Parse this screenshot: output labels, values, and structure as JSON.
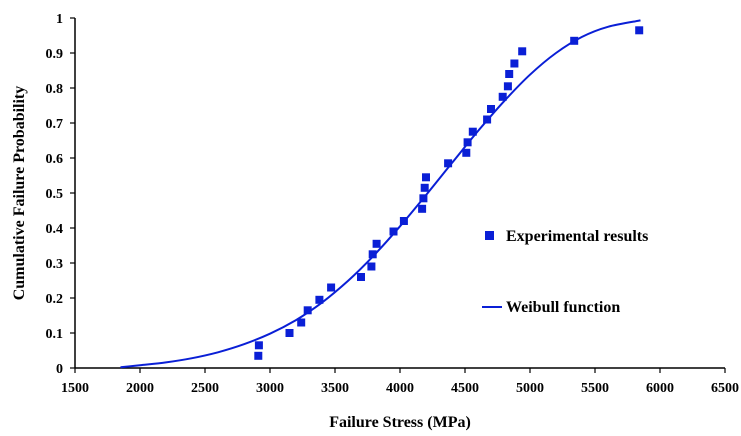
{
  "chart_data": {
    "type": "scatter",
    "title": "",
    "xlabel": "Failure Stress (MPa)",
    "ylabel": "Cumulative Failure Probability",
    "xlim": [
      1500,
      6500
    ],
    "ylim": [
      0,
      1
    ],
    "xticks": [
      "1500",
      "2000",
      "2500",
      "3000",
      "3500",
      "4000",
      "4500",
      "5000",
      "5500",
      "6000",
      "6500"
    ],
    "yticks": [
      "0",
      "0.1",
      "0.2",
      "0.3",
      "0.4",
      "0.5",
      "0.6",
      "0.7",
      "0.8",
      "0.9",
      "1"
    ],
    "grid": false,
    "legend": "right",
    "colors": {
      "series": "#0a1fd6"
    },
    "series": [
      {
        "name": "Experimental results",
        "kind": "points",
        "marker": "square",
        "x": [
          2910,
          2915,
          3150,
          3240,
          3290,
          3380,
          3470,
          3700,
          3780,
          3790,
          3820,
          3950,
          4030,
          4170,
          4180,
          4190,
          4200,
          4370,
          4510,
          4520,
          4560,
          4670,
          4700,
          4790,
          4830,
          4840,
          4880,
          4940,
          5340,
          5840
        ],
        "y": [
          0.035,
          0.065,
          0.1,
          0.13,
          0.165,
          0.195,
          0.23,
          0.26,
          0.29,
          0.325,
          0.355,
          0.39,
          0.42,
          0.455,
          0.485,
          0.515,
          0.545,
          0.585,
          0.615,
          0.645,
          0.675,
          0.71,
          0.74,
          0.775,
          0.805,
          0.84,
          0.87,
          0.905,
          0.935,
          0.965
        ]
      },
      {
        "name": "Weibull function",
        "kind": "line",
        "x": [
          1850,
          2000,
          2200,
          2400,
          2600,
          2800,
          3000,
          3200,
          3400,
          3600,
          3800,
          4000,
          4200,
          4400,
          4600,
          4800,
          5000,
          5200,
          5400,
          5600,
          5850
        ],
        "y": [
          0.002,
          0.008,
          0.016,
          0.028,
          0.045,
          0.068,
          0.098,
          0.137,
          0.187,
          0.249,
          0.322,
          0.405,
          0.494,
          0.586,
          0.677,
          0.762,
          0.838,
          0.9,
          0.946,
          0.975,
          0.993
        ]
      }
    ]
  }
}
